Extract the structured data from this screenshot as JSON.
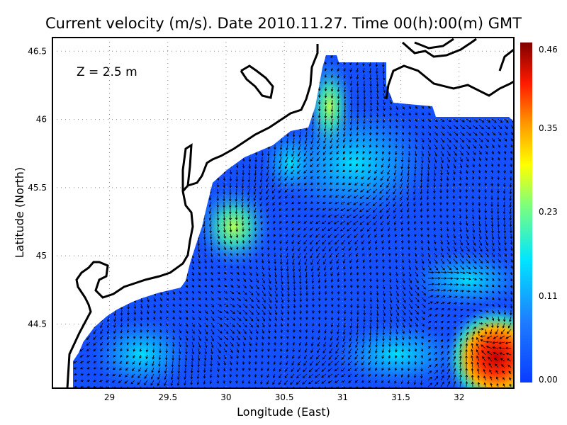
{
  "title": "Current velocity (m/s). Date 2010.11.27. Time 00(h):00(m) GMT",
  "depth_label": "Z = 2.5 m",
  "x_axis": {
    "label": "Longitude (East)",
    "range": [
      28.51,
      32.47
    ],
    "ticks": [
      {
        "value": 29,
        "label": "29"
      },
      {
        "value": 29.5,
        "label": "29.5"
      },
      {
        "value": 30,
        "label": "30"
      },
      {
        "value": 30.5,
        "label": "30.5"
      },
      {
        "value": 31,
        "label": "31"
      },
      {
        "value": 31.5,
        "label": "31.5"
      },
      {
        "value": 32,
        "label": "32"
      }
    ]
  },
  "y_axis": {
    "label": "Latitude (North)",
    "range": [
      44.03,
      46.6
    ],
    "ticks": [
      {
        "value": 44.5,
        "label": "44.5"
      },
      {
        "value": 45,
        "label": "45"
      },
      {
        "value": 45.5,
        "label": "45.5"
      },
      {
        "value": 46,
        "label": "46"
      },
      {
        "value": 46.5,
        "label": "46.5"
      }
    ]
  },
  "grid": "dotted",
  "colorbar": {
    "range": [
      0.0,
      0.46
    ],
    "ticks": [
      "0.00",
      "0.11",
      "0.23",
      "0.35",
      "0.46"
    ],
    "colors": [
      "#0a3cff",
      "#1e90ff",
      "#00e5ff",
      "#7dff7d",
      "#ffff00",
      "#ff9900",
      "#ff1a00",
      "#800000"
    ]
  },
  "colors": {
    "land": "#ffffff",
    "coastline": "#000000",
    "arrows": "#000000"
  }
}
